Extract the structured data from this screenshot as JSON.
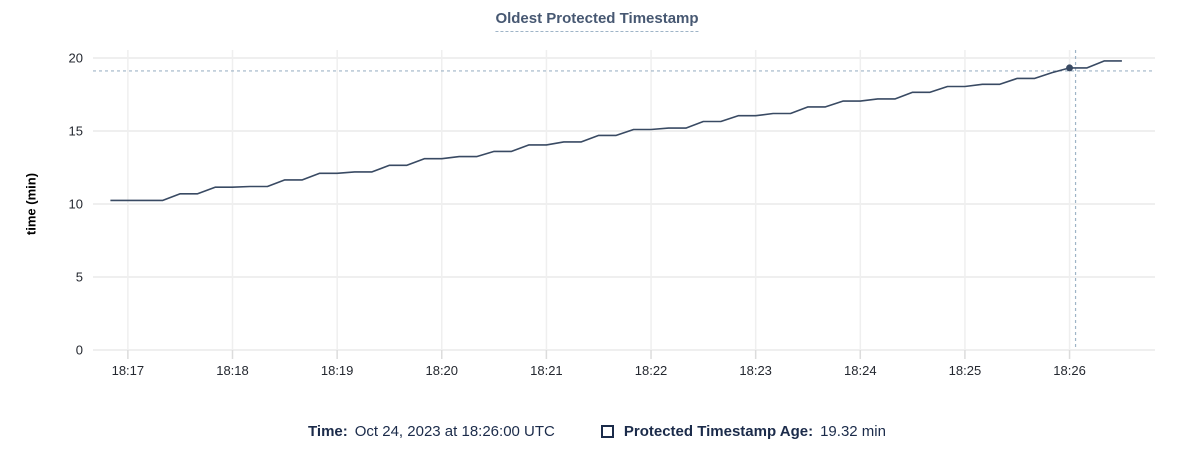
{
  "title": "Oldest Protected Timestamp",
  "footer": {
    "time_label": "Time:",
    "time_value": "Oct 24, 2023 at 18:26:00 UTC",
    "series_label": "Protected Timestamp Age:",
    "series_value": "19.32 min"
  },
  "colors": {
    "title": "#475872",
    "line": "#394a63",
    "footer_text": "#1b2b4a",
    "crosshair": "#9fb4c7",
    "gridline": "#efefef",
    "tick": "#dcdcdc",
    "axis_text": "#242830"
  },
  "chart_data": {
    "type": "line",
    "title": "Oldest Protected Timestamp",
    "xlabel": "",
    "ylabel": "time (min)",
    "ylim": [
      0,
      20
    ],
    "y_ticks": [
      0,
      5,
      10,
      15,
      20
    ],
    "x_ticks": [
      "18:17",
      "18:18",
      "18:19",
      "18:20",
      "18:21",
      "18:22",
      "18:23",
      "18:24",
      "18:25",
      "18:26"
    ],
    "grid": true,
    "legend_position": "bottom",
    "series": [
      {
        "name": "Protected Timestamp Age",
        "unit": "min",
        "points": [
          [
            "18:16:50",
            10.25
          ],
          [
            "18:17:00",
            10.25
          ],
          [
            "18:17:10",
            10.25
          ],
          [
            "18:17:20",
            10.25
          ],
          [
            "18:17:30",
            10.7
          ],
          [
            "18:17:40",
            10.7
          ],
          [
            "18:17:50",
            11.15
          ],
          [
            "18:18:00",
            11.15
          ],
          [
            "18:18:10",
            11.2
          ],
          [
            "18:18:20",
            11.2
          ],
          [
            "18:18:30",
            11.65
          ],
          [
            "18:18:40",
            11.65
          ],
          [
            "18:18:50",
            12.1
          ],
          [
            "18:19:00",
            12.1
          ],
          [
            "18:19:10",
            12.2
          ],
          [
            "18:19:20",
            12.2
          ],
          [
            "18:19:30",
            12.65
          ],
          [
            "18:19:40",
            12.65
          ],
          [
            "18:19:50",
            13.1
          ],
          [
            "18:20:00",
            13.1
          ],
          [
            "18:20:10",
            13.25
          ],
          [
            "18:20:20",
            13.25
          ],
          [
            "18:20:30",
            13.6
          ],
          [
            "18:20:40",
            13.6
          ],
          [
            "18:20:50",
            14.05
          ],
          [
            "18:21:00",
            14.05
          ],
          [
            "18:21:10",
            14.25
          ],
          [
            "18:21:20",
            14.25
          ],
          [
            "18:21:30",
            14.7
          ],
          [
            "18:21:40",
            14.7
          ],
          [
            "18:21:50",
            15.1
          ],
          [
            "18:22:00",
            15.1
          ],
          [
            "18:22:10",
            15.2
          ],
          [
            "18:22:20",
            15.2
          ],
          [
            "18:22:30",
            15.65
          ],
          [
            "18:22:40",
            15.65
          ],
          [
            "18:22:50",
            16.05
          ],
          [
            "18:23:00",
            16.05
          ],
          [
            "18:23:10",
            16.2
          ],
          [
            "18:23:20",
            16.2
          ],
          [
            "18:23:30",
            16.65
          ],
          [
            "18:23:40",
            16.65
          ],
          [
            "18:23:50",
            17.05
          ],
          [
            "18:24:00",
            17.05
          ],
          [
            "18:24:10",
            17.2
          ],
          [
            "18:24:20",
            17.2
          ],
          [
            "18:24:30",
            17.65
          ],
          [
            "18:24:40",
            17.65
          ],
          [
            "18:24:50",
            18.05
          ],
          [
            "18:25:00",
            18.05
          ],
          [
            "18:25:10",
            18.2
          ],
          [
            "18:25:20",
            18.2
          ],
          [
            "18:25:30",
            18.6
          ],
          [
            "18:25:40",
            18.6
          ],
          [
            "18:25:50",
            19.0
          ],
          [
            "18:26:00",
            19.32
          ],
          [
            "18:26:10",
            19.32
          ],
          [
            "18:26:20",
            19.8
          ],
          [
            "18:26:30",
            19.8
          ]
        ]
      }
    ],
    "hover": {
      "time": "18:26:00",
      "time_display": "Oct 24, 2023 at 18:26:00 UTC",
      "value": 19.32,
      "value_display": "19.32 min"
    }
  }
}
